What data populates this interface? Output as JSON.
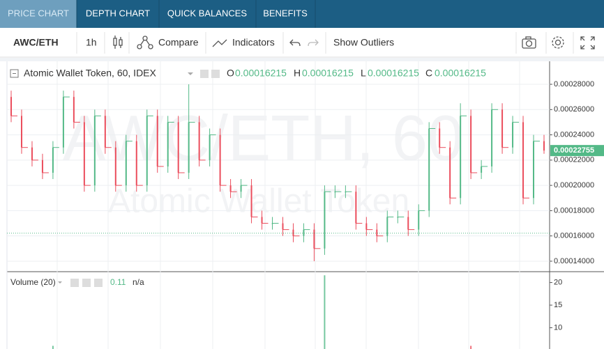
{
  "tabs": [
    "PRICE CHART",
    "DEPTH CHART",
    "QUICK BALANCES",
    "BENEFITS"
  ],
  "toolbar": {
    "symbol": "AWC/ETH",
    "interval": "1h",
    "compare": "Compare",
    "indicators": "Indicators",
    "outliers": "Show Outliers"
  },
  "chart_data": {
    "type": "candlestick",
    "title": "Atomic Wallet Token, 60, IDEX",
    "watermark": "AWC/ETH, 60",
    "watermark_subtitle": "Atomic Wallet Token",
    "ohlc_legend": {
      "o_label": "O",
      "o": 0.00016215,
      "h_label": "H",
      "h": 0.00016215,
      "l_label": "L",
      "l": 0.00016215,
      "c_label": "C",
      "c": 0.00016215
    },
    "last_price": 0.00022755,
    "up_color": "#53b987",
    "down_color": "#eb4d5c",
    "open": [
      0.00027,
      0.000255,
      0.00023,
      0.00022,
      0.00021,
      0.00023,
      0.00027,
      0.00025,
      0.0002,
      0.000255,
      0.00023,
      0.0002,
      0.000235,
      0.0002,
      0.000255,
      0.000215,
      0.00025,
      0.00021,
      0.00025,
      0.00022,
      0.00024,
      0.0002,
      0.000195,
      0.0002,
      0.000175,
      0.00017,
      0.00017,
      0.000165,
      0.00016,
      0.000165,
      0.00015,
      0.000195,
      0.000195,
      0.000195,
      0.00017,
      0.000165,
      0.00016,
      0.000175,
      0.000175,
      0.000165,
      0.00018,
      0.000245,
      0.00023,
      0.00019,
      0.000255,
      0.00021,
      0.000215,
      0.00026,
      0.00023,
      0.00025,
      0.00019,
      0.000235
    ],
    "high": [
      0.000275,
      0.00026,
      0.000235,
      0.000225,
      0.000235,
      0.000275,
      0.000275,
      0.000255,
      0.00026,
      0.00026,
      0.000235,
      0.00024,
      0.00024,
      0.00026,
      0.00026,
      0.000255,
      0.000255,
      0.00028,
      0.000255,
      0.000245,
      0.000245,
      0.000205,
      0.000205,
      0.000205,
      0.00018,
      0.000175,
      0.000175,
      0.00017,
      0.00017,
      0.00017,
      0.0002,
      0.0002,
      0.0002,
      0.0002,
      0.000175,
      0.00017,
      0.00018,
      0.00018,
      0.00018,
      0.000185,
      0.00025,
      0.00025,
      0.000235,
      0.000265,
      0.00026,
      0.00022,
      0.000265,
      0.000265,
      0.000255,
      0.000255,
      0.00024,
      0.00024
    ],
    "low": [
      0.00025,
      0.000225,
      0.000215,
      0.000205,
      0.000205,
      0.000225,
      0.000245,
      0.000195,
      0.000195,
      0.000225,
      0.000195,
      0.000195,
      0.000195,
      0.000195,
      0.00021,
      0.00021,
      0.000205,
      0.000205,
      0.000215,
      0.000215,
      0.000195,
      0.00019,
      0.00019,
      0.00017,
      0.000165,
      0.000165,
      0.00016,
      0.000155,
      0.000155,
      0.00014,
      0.000145,
      0.00019,
      0.00019,
      0.000165,
      0.00016,
      0.000155,
      0.000155,
      0.00017,
      0.00016,
      0.00016,
      0.000175,
      0.000225,
      0.000185,
      0.000185,
      0.000205,
      0.000205,
      0.00021,
      0.000225,
      0.000225,
      0.000185,
      0.000185,
      0.000225
    ],
    "close": [
      0.000255,
      0.00023,
      0.00022,
      0.00021,
      0.00023,
      0.00027,
      0.00025,
      0.0002,
      0.000255,
      0.00023,
      0.0002,
      0.000235,
      0.0002,
      0.000255,
      0.000215,
      0.00025,
      0.00021,
      0.00025,
      0.00022,
      0.00024,
      0.0002,
      0.000195,
      0.0002,
      0.000175,
      0.00017,
      0.00017,
      0.000165,
      0.00016,
      0.000165,
      0.00015,
      0.000195,
      0.000195,
      0.000195,
      0.00017,
      0.000165,
      0.00016,
      0.000175,
      0.000175,
      0.000165,
      0.00018,
      0.000245,
      0.00023,
      0.00019,
      0.000255,
      0.00021,
      0.000215,
      0.00026,
      0.00023,
      0.00025,
      0.00019,
      0.000235,
      0.00022755
    ],
    "ylim": [
      0.0001317,
      0.0002982
    ],
    "yticks": [
      {
        "value": 0.00014,
        "label": "0.00014000"
      },
      {
        "value": 0.00016,
        "label": "0.00016000"
      },
      {
        "value": 0.00018,
        "label": "0.00018000"
      },
      {
        "value": 0.0002,
        "label": "0.00020000"
      },
      {
        "value": 0.00022,
        "label": "0.00022000"
      },
      {
        "value": 0.00024,
        "label": "0.00024000"
      },
      {
        "value": 0.00026,
        "label": "0.00026000"
      },
      {
        "value": 0.00028,
        "label": "0.00028000"
      }
    ],
    "volume_legend": {
      "name": "Volume (20)",
      "value": 0.11,
      "ma": "n/a"
    },
    "volume": [
      0.3,
      0.2,
      0.3,
      0.2,
      6,
      0.4,
      0.3,
      0.2,
      0.3,
      0.2,
      0.3,
      0.2,
      0.3,
      0.2,
      0.3,
      0.2,
      0.3,
      0.4,
      0.2,
      0.3,
      0.2,
      0.3,
      0.2,
      0.3,
      0.2,
      0.3,
      0.2,
      0.3,
      0.2,
      0.3,
      21.6,
      0.3,
      0.2,
      0.3,
      0.2,
      0.3,
      0.2,
      0.3,
      0.2,
      0.3,
      0.4,
      0.3,
      0.2,
      0.3,
      6,
      0.3,
      0.2,
      0.3,
      0.2,
      0.3,
      0.2,
      0.3
    ],
    "vol_ylim": [
      5.3,
      22.4
    ],
    "vol_yticks": [
      10,
      15,
      20
    ],
    "grid": true
  }
}
